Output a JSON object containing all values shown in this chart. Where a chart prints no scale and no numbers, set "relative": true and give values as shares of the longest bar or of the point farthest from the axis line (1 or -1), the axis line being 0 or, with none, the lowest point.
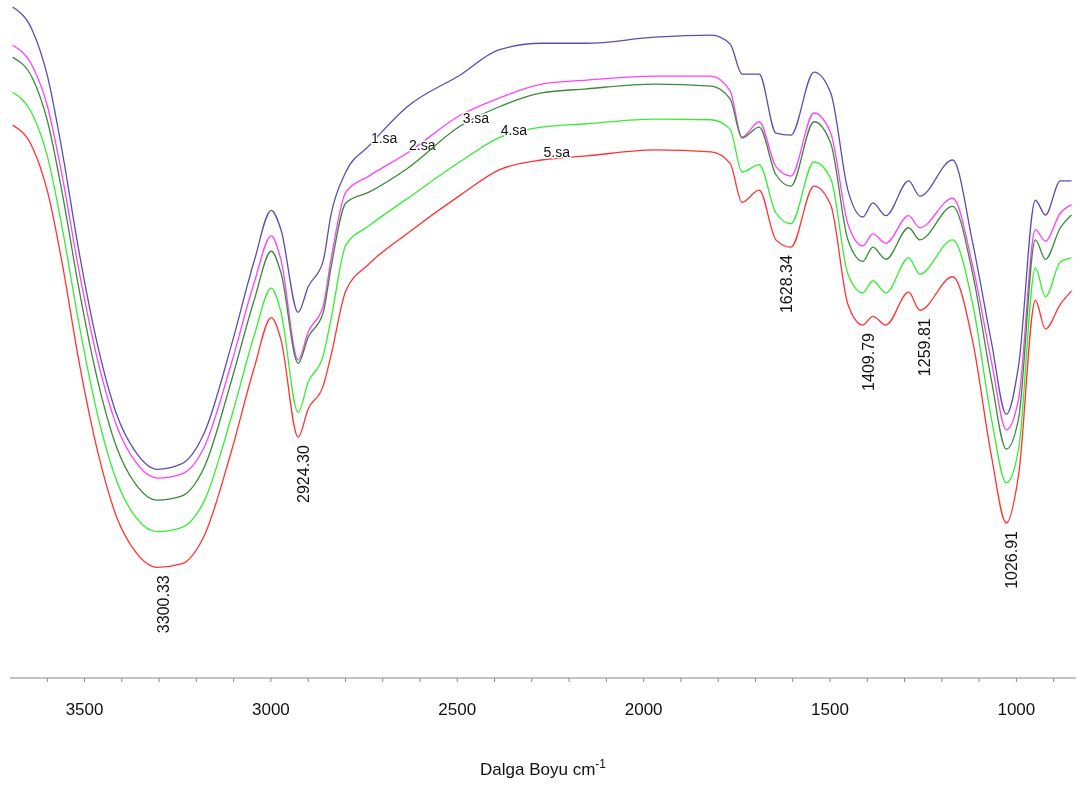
{
  "chart_data": {
    "type": "line",
    "relative": true,
    "xlabel": "Dalga Boyu cm$^{-1}$",
    "xlim": [
      3700,
      840
    ],
    "xticks": [
      {
        "value": 3600,
        "label": null
      },
      3500,
      {
        "value": 3400,
        "label": null
      },
      {
        "value": 3300,
        "label": null
      },
      {
        "value": 3200,
        "label": null
      },
      {
        "value": 3100,
        "label": null
      },
      3000,
      {
        "value": 2900,
        "label": null
      },
      {
        "value": 2800,
        "label": null
      },
      {
        "value": 2700,
        "label": null
      },
      {
        "value": 2600,
        "label": null
      },
      2500,
      {
        "value": 2400,
        "label": null
      },
      {
        "value": 2300,
        "label": null
      },
      {
        "value": 2200,
        "label": null
      },
      {
        "value": 2100,
        "label": null
      },
      2000,
      {
        "value": 1900,
        "label": null
      },
      {
        "value": 1800,
        "label": null
      },
      {
        "value": 1700,
        "label": null
      },
      {
        "value": 1600,
        "label": null
      },
      1500,
      {
        "value": 1400,
        "label": null
      },
      {
        "value": 1300,
        "label": null
      },
      {
        "value": 1200,
        "label": null
      },
      {
        "value": 1100,
        "label": null
      },
      1000,
      {
        "value": 900,
        "label": null
      }
    ],
    "x": [
      3693,
      3639,
      3599,
      3559,
      3516,
      3465,
      3414,
      3363,
      3305,
      3240,
      3179,
      3106,
      3045,
      2999,
      2973,
      2927,
      2900,
      2860,
      2839,
      2799,
      2737,
      2635,
      2491,
      2389,
      2274,
      2153,
      1971,
      1819,
      1768,
      1736,
      1690,
      1645,
      1605,
      1543,
      1498,
      1452,
      1412,
      1385,
      1350,
      1289,
      1259,
      1171,
      1117,
      1067,
      1027,
      994,
      949,
      922,
      882,
      852
    ],
    "series": [
      {
        "name": "1.sa",
        "color": "#5a4fb0",
        "values": [
          1.0,
          0.964,
          0.896,
          0.782,
          0.639,
          0.496,
          0.393,
          0.337,
          0.311,
          0.319,
          0.365,
          0.496,
          0.621,
          0.697,
          0.668,
          0.545,
          0.583,
          0.621,
          0.69,
          0.754,
          0.793,
          0.851,
          0.899,
          0.936,
          0.946,
          0.946,
          0.955,
          0.958,
          0.945,
          0.9,
          0.9,
          0.812,
          0.809,
          0.903,
          0.872,
          0.727,
          0.687,
          0.708,
          0.689,
          0.741,
          0.718,
          0.772,
          0.648,
          0.501,
          0.393,
          0.466,
          0.712,
          0.69,
          0.741,
          0.741
        ]
      },
      {
        "name": "2.sa",
        "color": "#ff40ff",
        "values": [
          0.943,
          0.911,
          0.851,
          0.745,
          0.61,
          0.474,
          0.376,
          0.322,
          0.298,
          0.304,
          0.344,
          0.469,
          0.589,
          0.659,
          0.623,
          0.474,
          0.516,
          0.554,
          0.623,
          0.724,
          0.748,
          0.782,
          0.839,
          0.864,
          0.885,
          0.891,
          0.897,
          0.897,
          0.875,
          0.806,
          0.829,
          0.762,
          0.748,
          0.842,
          0.812,
          0.677,
          0.644,
          0.662,
          0.648,
          0.689,
          0.671,
          0.715,
          0.614,
          0.472,
          0.37,
          0.416,
          0.668,
          0.651,
          0.693,
          0.705
        ]
      },
      {
        "name": "3.sa",
        "color": "#3a8a3a",
        "values": [
          0.925,
          0.893,
          0.829,
          0.72,
          0.583,
          0.444,
          0.344,
          0.289,
          0.265,
          0.271,
          0.314,
          0.443,
          0.563,
          0.636,
          0.604,
          0.469,
          0.508,
          0.544,
          0.611,
          0.708,
          0.724,
          0.759,
          0.823,
          0.851,
          0.872,
          0.878,
          0.885,
          0.882,
          0.863,
          0.805,
          0.821,
          0.75,
          0.733,
          0.829,
          0.797,
          0.653,
          0.621,
          0.642,
          0.624,
          0.671,
          0.653,
          0.703,
          0.602,
          0.444,
          0.341,
          0.387,
          0.653,
          0.624,
          0.671,
          0.69
        ]
      },
      {
        "name": "4.sa",
        "color": "#33ee33",
        "values": [
          0.873,
          0.839,
          0.776,
          0.668,
          0.531,
          0.392,
          0.294,
          0.24,
          0.218,
          0.224,
          0.264,
          0.389,
          0.51,
          0.581,
          0.545,
          0.396,
          0.441,
          0.48,
          0.534,
          0.645,
          0.674,
          0.714,
          0.77,
          0.805,
          0.821,
          0.826,
          0.833,
          0.832,
          0.818,
          0.754,
          0.765,
          0.693,
          0.677,
          0.769,
          0.744,
          0.602,
          0.574,
          0.592,
          0.574,
          0.626,
          0.602,
          0.653,
          0.557,
          0.387,
          0.291,
          0.341,
          0.611,
          0.568,
          0.62,
          0.626
        ]
      },
      {
        "name": "5.sa",
        "color": "#ff3333",
        "values": [
          0.824,
          0.79,
          0.724,
          0.615,
          0.475,
          0.338,
          0.24,
          0.188,
          0.165,
          0.17,
          0.212,
          0.338,
          0.462,
          0.537,
          0.504,
          0.359,
          0.401,
          0.435,
          0.48,
          0.577,
          0.617,
          0.662,
          0.72,
          0.757,
          0.772,
          0.778,
          0.787,
          0.784,
          0.767,
          0.709,
          0.727,
          0.653,
          0.642,
          0.733,
          0.705,
          0.557,
          0.526,
          0.539,
          0.526,
          0.575,
          0.548,
          0.598,
          0.501,
          0.331,
          0.231,
          0.303,
          0.563,
          0.52,
          0.557,
          0.577
        ]
      }
    ],
    "annotations": [
      {
        "text": "3300.33",
        "x": 3300.33,
        "y": 0.165
      },
      {
        "text": "2924.30",
        "x": 2924.3,
        "y": 0.359
      },
      {
        "text": "1628.34",
        "x": 1628.34,
        "y": 0.642
      },
      {
        "text": "1409.79",
        "x": 1409.79,
        "y": 0.526
      },
      {
        "text": "1259.81",
        "x": 1259.81,
        "y": 0.548
      },
      {
        "text": "1026.91",
        "x": 1026.91,
        "y": 0.231
      }
    ]
  }
}
